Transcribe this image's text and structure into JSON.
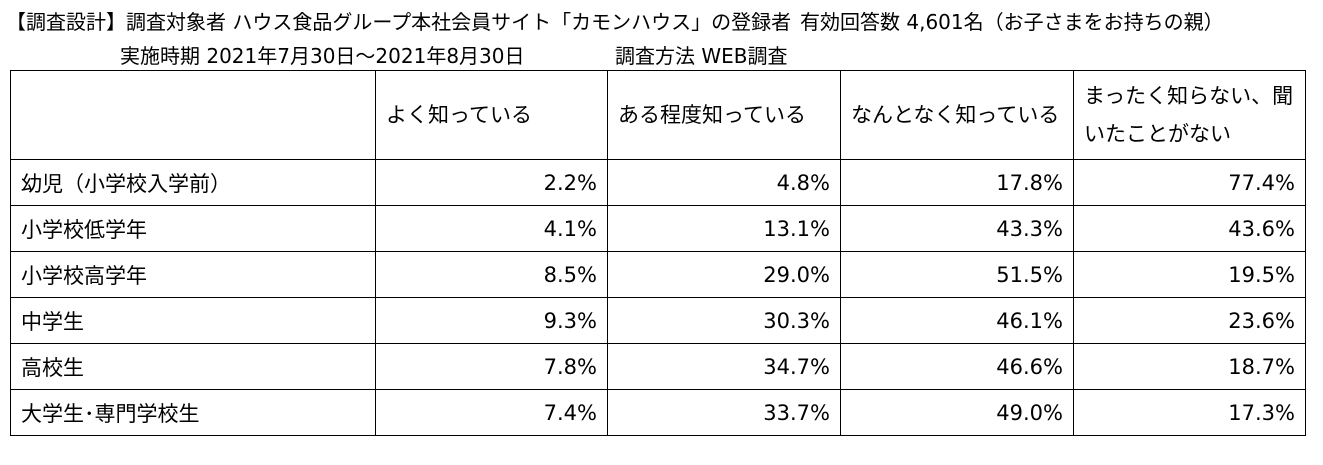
{
  "header": {
    "line1": {
      "left": "【調査設計】調査対象者 ハウス食品グループ本社会員サイト「カモンハウス」の登録者",
      "right": "有効回答数 4,601名（お子さまをお持ちの親）"
    },
    "line2": {
      "left": "実施時期 2021年7月30日～2021年8月30日",
      "right": "調査方法 WEB調査"
    }
  },
  "table": {
    "columns": [
      "よく知っている",
      "ある程度知っている",
      "なんとなく知っている",
      "まったく知らない、聞いたことがない"
    ],
    "rows": [
      [
        "幼児（小学校入学前）",
        "2.2%",
        "4.8%",
        "17.8%",
        "77.4%"
      ],
      [
        "小学校低学年",
        "4.1%",
        "13.1%",
        "43.3%",
        "43.6%"
      ],
      [
        "小学校高学年",
        "8.5%",
        "29.0%",
        "51.5%",
        "19.5%"
      ],
      [
        "中学生",
        "9.3%",
        "30.3%",
        "46.1%",
        "23.6%"
      ],
      [
        "高校生",
        "7.8%",
        "34.7%",
        "46.6%",
        "18.7%"
      ],
      [
        "大学生･専門学校生",
        "7.4%",
        "33.7%",
        "49.0%",
        "17.3%"
      ]
    ]
  }
}
